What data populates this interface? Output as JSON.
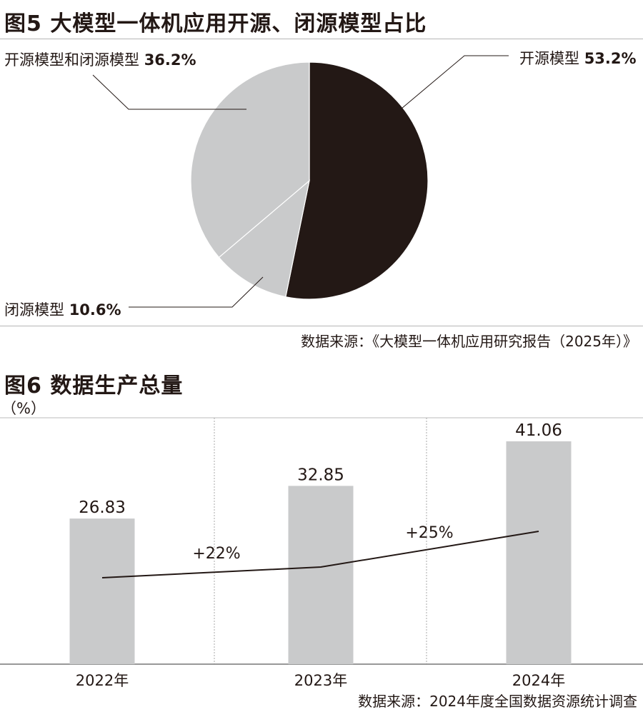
{
  "colors": {
    "dark": "#231815",
    "grey": "#c9cacb",
    "line": "#231815"
  },
  "chart_data": [
    {
      "type": "pie",
      "title": "图5 大模型一体机应用开源、闭源模型占比",
      "slices": [
        {
          "label": "开源模型",
          "value": 53.2,
          "display": "53.2%",
          "color": "#231815"
        },
        {
          "label": "闭源模型",
          "value": 10.6,
          "display": "10.6%",
          "color": "#c9cacb"
        },
        {
          "label": "开源模型和闭源模型",
          "value": 36.2,
          "display": "36.2%",
          "color": "#c9cacb"
        }
      ],
      "source": "数据来源：《大模型一体机应用研究报告（2025年）》"
    },
    {
      "type": "bar",
      "title": "图6 数据生产总量",
      "unit": "（%）",
      "categories": [
        "2022年",
        "2023年",
        "2024年"
      ],
      "values": [
        26.83,
        32.85,
        41.06
      ],
      "value_labels": [
        "26.83",
        "32.85",
        "41.06"
      ],
      "growth_labels": [
        "+22%",
        "+25%"
      ],
      "ylim": [
        0,
        45.4
      ],
      "grid": false,
      "source": "数据来源：2024年度全国数据资源统计调查"
    }
  ]
}
